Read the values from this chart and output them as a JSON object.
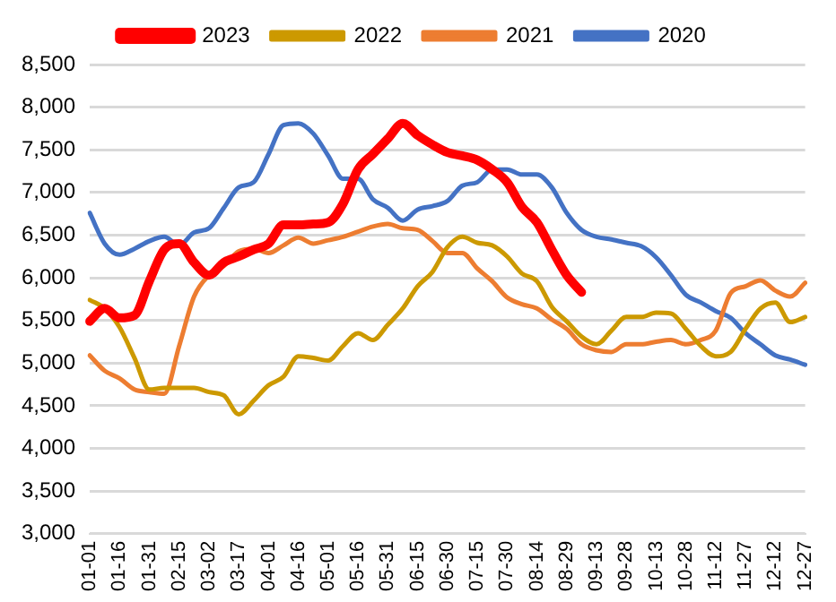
{
  "chart_data": {
    "type": "line",
    "categories": [
      "01-01",
      null,
      "01-16",
      null,
      "01-31",
      null,
      "02-15",
      null,
      "03-02",
      null,
      "03-17",
      null,
      "04-01",
      null,
      "04-16",
      null,
      "05-01",
      null,
      "05-16",
      null,
      "05-31",
      null,
      "06-15",
      null,
      "06-30",
      null,
      "07-15",
      null,
      "07-30",
      null,
      "08-14",
      null,
      "08-29",
      null,
      "09-13",
      null,
      "09-28",
      null,
      "10-13",
      null,
      "10-28",
      null,
      "11-12",
      null,
      "11-27",
      null,
      "12-12",
      null,
      "12-27"
    ],
    "series": [
      {
        "name": "2023",
        "color": "#ff0000",
        "values": [
          5490,
          5640,
          5530,
          5560,
          5960,
          6330,
          6400,
          6180,
          6030,
          6180,
          6250,
          6330,
          6400,
          6620,
          6620,
          6630,
          6650,
          6870,
          7270,
          7450,
          7630,
          7810,
          7670,
          7560,
          7470,
          7430,
          7380,
          7270,
          7120,
          6830,
          6650,
          6330,
          6030,
          5830,
          null,
          null,
          null,
          null,
          null,
          null,
          null,
          null,
          null,
          null,
          null,
          null,
          null,
          null,
          null
        ]
      },
      {
        "name": "2022",
        "color": "#cc9900",
        "values": [
          5740,
          5640,
          5420,
          5060,
          4690,
          4710,
          4710,
          4710,
          4660,
          4620,
          4400,
          4560,
          4740,
          4840,
          5080,
          5060,
          5030,
          5200,
          5350,
          5270,
          5450,
          5640,
          5900,
          6070,
          6360,
          6480,
          6410,
          6380,
          6250,
          6050,
          5960,
          5660,
          5490,
          5310,
          5220,
          5380,
          5540,
          5540,
          5590,
          5580,
          5400,
          5200,
          5080,
          5130,
          5400,
          5640,
          5710,
          5480,
          5540
        ]
      },
      {
        "name": "2021",
        "color": "#ed7d31",
        "values": [
          5090,
          4910,
          4820,
          4690,
          4660,
          4640,
          5200,
          5780,
          6030,
          6140,
          6310,
          6340,
          6290,
          6380,
          6470,
          6400,
          6440,
          6480,
          6540,
          6600,
          6630,
          6580,
          6560,
          6430,
          6290,
          6290,
          6110,
          5960,
          5770,
          5690,
          5640,
          5510,
          5400,
          5220,
          5150,
          5130,
          5220,
          5220,
          5250,
          5270,
          5220,
          5270,
          5380,
          5820,
          5900,
          5970,
          5850,
          5780,
          5940
        ]
      },
      {
        "name": "2020",
        "color": "#4472c4",
        "values": [
          6760,
          6400,
          6270,
          6340,
          6430,
          6480,
          6380,
          6530,
          6580,
          6820,
          7060,
          7120,
          7450,
          7790,
          7810,
          7690,
          7430,
          7160,
          7160,
          6920,
          6820,
          6670,
          6800,
          6840,
          6900,
          7080,
          7120,
          7270,
          7270,
          7210,
          7210,
          7060,
          6760,
          6560,
          6480,
          6450,
          6410,
          6370,
          6240,
          6030,
          5800,
          5710,
          5610,
          5530,
          5350,
          5220,
          5090,
          5040,
          4980
        ]
      }
    ],
    "ylim": [
      3000,
      8500
    ],
    "yticks": [
      {
        "value": 3000,
        "label": "3,000"
      },
      {
        "value": 3500,
        "label": "3,500"
      },
      {
        "value": 4000,
        "label": "4,000"
      },
      {
        "value": 4500,
        "label": "4,500"
      },
      {
        "value": 5000,
        "label": "5,000"
      },
      {
        "value": 5500,
        "label": "5,500"
      },
      {
        "value": 6000,
        "label": "6,000"
      },
      {
        "value": 6500,
        "label": "6,500"
      },
      {
        "value": 7000,
        "label": "7,000"
      },
      {
        "value": 7500,
        "label": "7,500"
      },
      {
        "value": 8000,
        "label": "8,000"
      },
      {
        "value": 8500,
        "label": "8,500"
      }
    ],
    "grid": "y",
    "legend": "top",
    "marker": "none",
    "line_style": "solid"
  }
}
